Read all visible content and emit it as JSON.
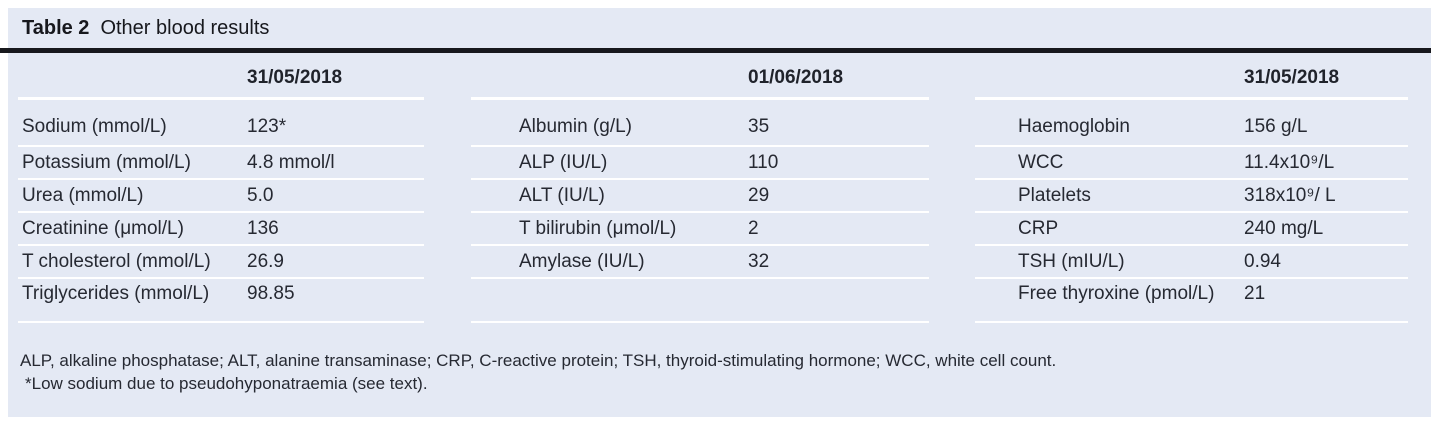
{
  "title": {
    "label": "Table 2",
    "text": "Other blood results"
  },
  "groups": [
    {
      "date": "31/05/2018",
      "rows": [
        {
          "label": "Sodium (mmol/L)",
          "value": "123*"
        },
        {
          "label": "Potassium (mmol/L)",
          "value": "4.8 mmol/l"
        },
        {
          "label": "Urea (mmol/L)",
          "value": "5.0"
        },
        {
          "label": "Creatinine (μmol/L)",
          "value": "136"
        },
        {
          "label": "T cholesterol (mmol/L)",
          "value": "26.9"
        },
        {
          "label": "Triglycerides (mmol/L)",
          "value": "98.85"
        }
      ]
    },
    {
      "date": "01/06/2018",
      "rows": [
        {
          "label": "Albumin (g/L)",
          "value": "35"
        },
        {
          "label": "ALP (IU/L)",
          "value": "110"
        },
        {
          "label": "ALT (IU/L)",
          "value": "29"
        },
        {
          "label": "T bilirubin (μmol/L)",
          "value": "2"
        },
        {
          "label": "Amylase (IU/L)",
          "value": "32"
        }
      ]
    },
    {
      "date": "31/05/2018",
      "rows": [
        {
          "label": "Haemoglobin",
          "value": "156 g/L"
        },
        {
          "label": "WCC",
          "value": "11.4x10⁹/L"
        },
        {
          "label": "Platelets",
          "value": "318x10⁹/ L"
        },
        {
          "label": "CRP",
          "value": "240 mg/L"
        },
        {
          "label": "TSH (mIU/L)",
          "value": "0.94"
        },
        {
          "label": "Free thyroxine (pmol/L)",
          "value": "21"
        }
      ]
    }
  ],
  "footnotes": [
    "ALP, alkaline phosphatase; ALT, alanine transaminase; CRP, C-reactive protein; TSH, thyroid-stimulating hormone; WCC, white cell count.",
    "*Low sodium due to pseudohyponatraemia (see text)."
  ],
  "colors": {
    "panel_background": "#e4e9f4",
    "title_rule": "#17181d",
    "row_separator": "#ffffff",
    "text": "#262932"
  }
}
